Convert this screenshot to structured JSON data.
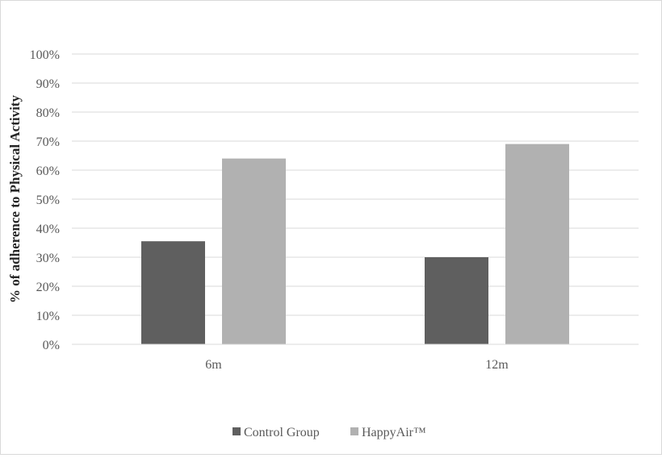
{
  "chart_data": {
    "type": "bar",
    "title": "",
    "xlabel": "",
    "ylabel": "% of adherence to Physical Activity",
    "categories": [
      "6m",
      "12m"
    ],
    "series": [
      {
        "name": "Control Group",
        "values": [
          35.5,
          30
        ],
        "color": "#5f5f5f"
      },
      {
        "name": "HappyAir™",
        "values": [
          64,
          69
        ],
        "color": "#b1b1b1"
      }
    ],
    "ylim": [
      0,
      100
    ],
    "y_ticks": [
      "0%",
      "10%",
      "20%",
      "30%",
      "40%",
      "50%",
      "60%",
      "70%",
      "80%",
      "90%",
      "100%"
    ],
    "grid": true,
    "gridline_color": "#d9d9d9",
    "legend_position": "bottom"
  }
}
